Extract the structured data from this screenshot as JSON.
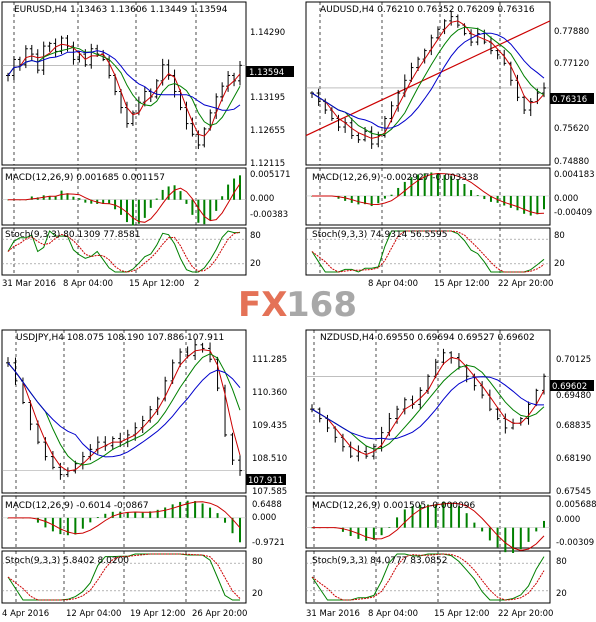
{
  "watermark": {
    "fx": "FX",
    "num": "168"
  },
  "colors": {
    "ma_fast": "#cc0000",
    "ma_mid": "#008000",
    "ma_slow": "#0000cc",
    "trend": "#cc0000",
    "macd_hist": "#008000",
    "macd_signal": "#cc0000",
    "stoch_main": "#008000",
    "stoch_signal": "#cc0000",
    "wm_fx": "#e05a3a",
    "wm_num": "#9a9a9a"
  },
  "chart_data": [
    {
      "type": "candlestick",
      "title": "EURUSD,H4  1.13463 1.13606 1.13449 1.13594",
      "last_price": "1.13594",
      "price_ticks": [
        "1.14290",
        "1.13195",
        "1.12655",
        "1.12115"
      ],
      "ylim": [
        1.118,
        1.147
      ],
      "closes": [
        1.134,
        1.137,
        1.136,
        1.139,
        1.138,
        1.135,
        1.1395,
        1.14,
        1.1385,
        1.141,
        1.1395,
        1.137,
        1.138,
        1.136,
        1.139,
        1.138,
        1.137,
        1.134,
        1.131,
        1.128,
        1.125,
        1.127,
        1.129,
        1.131,
        1.13,
        1.133,
        1.136,
        1.134,
        1.131,
        1.128,
        1.125,
        1.123,
        1.121,
        1.124,
        1.127,
        1.13,
        1.132,
        1.134,
        1.133,
        1.1359
      ],
      "macd": {
        "label": "MACD(12,26,9) 0.001685 0.001157",
        "ticks": [
          "0.005171",
          "0.000",
          "-0.00383"
        ],
        "ylim": [
          -0.0045,
          0.0058
        ]
      },
      "stoch": {
        "label": "Stoch(9,3,3) 80.1309 77.8581",
        "ticks": [
          "80",
          "20"
        ]
      },
      "dates": [
        "31 Mar 2016",
        "8 Apr 04:00",
        "15 Apr 12:00",
        "2"
      ]
    },
    {
      "type": "candlestick",
      "title": "AUDUSD,H4  0.76210 0.76352 0.76209 0.76316",
      "last_price": "0.76316",
      "price_ticks": [
        "0.77880",
        "0.77120",
        "0.75620",
        "0.74880"
      ],
      "ylim": [
        0.746,
        0.7825
      ],
      "closes": [
        0.762,
        0.76,
        0.758,
        0.756,
        0.754,
        0.755,
        0.752,
        0.751,
        0.753,
        0.75,
        0.752,
        0.756,
        0.759,
        0.762,
        0.765,
        0.768,
        0.77,
        0.772,
        0.775,
        0.777,
        0.779,
        0.78,
        0.778,
        0.776,
        0.774,
        0.776,
        0.774,
        0.772,
        0.771,
        0.769,
        0.765,
        0.761,
        0.758,
        0.76,
        0.762,
        0.7632
      ],
      "macd": {
        "label": "MACD(12,26,9) -0.002927 -0.003338",
        "ticks": [
          "0.004183",
          "0.000",
          "-0.00409"
        ],
        "ylim": [
          -0.0048,
          0.0046
        ]
      },
      "stoch": {
        "label": "Stoch(9,3,3) 74.9314 56.5595",
        "ticks": [
          "80",
          "20"
        ]
      },
      "dates": [
        "8 Apr 04:00",
        "15 Apr 12:00",
        "22 Apr 20:00"
      ]
    },
    {
      "type": "candlestick",
      "title": "USDJPY,H4  108.075 108.190 107.886 107.911",
      "last_price": "107.911",
      "price_ticks": [
        "111.285",
        "110.360",
        "109.435",
        "108.510",
        "107.585"
      ],
      "ylim": [
        107.4,
        111.7
      ],
      "closes": [
        110.9,
        110.4,
        109.8,
        109.2,
        108.7,
        108.3,
        108.0,
        107.8,
        107.9,
        108.1,
        108.3,
        108.5,
        108.7,
        108.6,
        108.8,
        108.7,
        108.9,
        109.1,
        109.3,
        109.6,
        109.9,
        110.4,
        110.9,
        111.2,
        111.1,
        111.4,
        111.3,
        111.0,
        110.2,
        108.9,
        108.2,
        107.91
      ],
      "macd": {
        "label": "MACD(12,26,9) -0.6014 -0.0867",
        "ticks": [
          "0.6488",
          "0.000",
          "-0.9721"
        ],
        "ylim": [
          -1.15,
          0.8
        ]
      },
      "stoch": {
        "label": "Stoch(9,3,3) 5.8402 8.0200",
        "ticks": [
          "80",
          "20"
        ]
      },
      "dates": [
        "4 Apr 2016",
        "12 Apr 04:00",
        "19 Apr 12:00",
        "26 Apr 20:00"
      ]
    },
    {
      "type": "candlestick",
      "title": "NZDUSD,H4  0.69550 0.69694 0.69527 0.69602",
      "last_price": "0.69602",
      "price_ticks": [
        "0.70125",
        "0.69480",
        "0.68835",
        "0.68190",
        "0.67545"
      ],
      "ylim": [
        0.672,
        0.705
      ],
      "closes": [
        0.689,
        0.687,
        0.685,
        0.683,
        0.681,
        0.679,
        0.68,
        0.679,
        0.681,
        0.684,
        0.687,
        0.689,
        0.691,
        0.69,
        0.693,
        0.696,
        0.699,
        0.701,
        0.7,
        0.698,
        0.696,
        0.694,
        0.692,
        0.689,
        0.687,
        0.685,
        0.686,
        0.687,
        0.69,
        0.693,
        0.696
      ],
      "macd": {
        "label": "MACD(12,26,9) 0.001505 -0.000096",
        "ticks": [
          "0.005688",
          "0.000",
          "-0.00309"
        ],
        "ylim": [
          -0.004,
          0.0066
        ]
      },
      "stoch": {
        "label": "Stoch(9,3,3) 84.0777 83.0852",
        "ticks": [
          "80",
          "20"
        ]
      },
      "dates": [
        "31 Mar 2016",
        "8 Apr 04:00",
        "15 Apr 12:00",
        "22 Apr 20:00"
      ]
    }
  ]
}
